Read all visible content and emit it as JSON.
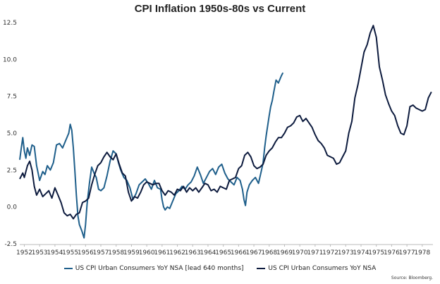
{
  "chart_data": {
    "type": "line",
    "title": "CPI Inflation 1950s-80s vs Current",
    "xlabel": "",
    "ylabel": "",
    "x_tick_labels": [
      "1952",
      "1953",
      "1954",
      "1955",
      "1956",
      "1957",
      "1958",
      "1959",
      "1960",
      "1961",
      "1962",
      "1963",
      "1964",
      "1965",
      "1966",
      "1967",
      "1968",
      "1969",
      "1970",
      "1971",
      "1972",
      "1973",
      "1974",
      "1975",
      "1976",
      "1977",
      "1978"
    ],
    "xlim": [
      1951.7,
      1978.7
    ],
    "ylim": [
      -2.5,
      12.5
    ],
    "y_tick_labels": [
      "12.5",
      "10.0",
      "7.5",
      "5.0",
      "2.5",
      "0.0",
      "-2.5"
    ],
    "y_ticks": [
      12.5,
      10.0,
      7.5,
      5.0,
      2.5,
      0.0,
      -2.5
    ],
    "grid": false,
    "legend_position": "bottom",
    "colors": {
      "lead": "#1f5f8b",
      "current": "#0d1b3e"
    },
    "series": [
      {
        "name": "US CPI Urban Consumers YoY NSA [lead 640 months]",
        "color": "#1f5f8b",
        "x": [
          1951.7,
          1951.8,
          1951.9,
          1952.0,
          1952.1,
          1952.2,
          1952.35,
          1952.5,
          1952.65,
          1952.8,
          1953.0,
          1953.2,
          1953.35,
          1953.5,
          1953.7,
          1953.9,
          1954.1,
          1954.3,
          1954.5,
          1954.7,
          1954.9,
          1955.0,
          1955.1,
          1955.2,
          1955.3,
          1955.4,
          1955.5,
          1955.6,
          1955.75,
          1955.9,
          1956.0,
          1956.1,
          1956.25,
          1956.4,
          1956.55,
          1956.7,
          1956.85,
          1957.0,
          1957.2,
          1957.4,
          1957.6,
          1957.8,
          1958.0,
          1958.15,
          1958.3,
          1958.5,
          1958.7,
          1958.9,
          1959.1,
          1959.3,
          1959.5,
          1959.7,
          1959.9,
          1960.1,
          1960.3,
          1960.5,
          1960.7,
          1960.9,
          1961.0,
          1961.1,
          1961.2,
          1961.35,
          1961.5,
          1961.7,
          1961.9,
          1962.1,
          1962.3,
          1962.5,
          1962.7,
          1962.9,
          1963.1,
          1963.3,
          1963.5,
          1963.7,
          1963.9,
          1964.1,
          1964.3,
          1964.5,
          1964.7,
          1964.9,
          1965.1,
          1965.3,
          1965.5,
          1965.7,
          1965.9,
          1966.1,
          1966.25,
          1966.35,
          1966.45,
          1966.55,
          1966.7,
          1966.9,
          1967.1,
          1967.3,
          1967.5,
          1967.6,
          1967.7,
          1967.8,
          1967.9,
          1968.0,
          1968.1,
          1968.2,
          1968.3,
          1968.45,
          1968.6,
          1968.8,
          1968.9
        ],
        "values": [
          3.2,
          4.0,
          4.7,
          3.8,
          3.3,
          4.0,
          3.5,
          4.2,
          4.1,
          2.8,
          1.8,
          2.4,
          2.2,
          2.8,
          2.5,
          3.0,
          4.2,
          4.3,
          4.0,
          4.5,
          5.0,
          5.6,
          5.2,
          4.0,
          2.5,
          0.8,
          -0.6,
          -1.2,
          -1.6,
          -2.1,
          -1.2,
          0.2,
          1.6,
          2.7,
          2.3,
          2.0,
          1.2,
          1.1,
          1.3,
          2.1,
          3.1,
          3.8,
          3.6,
          3.0,
          2.5,
          2.0,
          1.8,
          1.3,
          0.5,
          0.9,
          1.5,
          1.7,
          1.9,
          1.6,
          1.2,
          1.8,
          1.3,
          1.2,
          0.5,
          0.0,
          -0.2,
          0.0,
          -0.1,
          0.4,
          0.9,
          1.1,
          1.4,
          1.2,
          1.5,
          1.7,
          2.1,
          2.7,
          2.2,
          1.6,
          2.0,
          2.4,
          2.6,
          2.2,
          2.7,
          2.9,
          2.3,
          1.9,
          1.7,
          1.5,
          2.0,
          1.8,
          1.2,
          0.5,
          0.1,
          1.0,
          1.5,
          1.8,
          2.0,
          1.6,
          2.5,
          3.0,
          4.0,
          4.8,
          5.5,
          6.2,
          6.8,
          7.2,
          7.8,
          8.6,
          8.4,
          8.9,
          9.1
        ]
      },
      {
        "name": "US CPI Urban Consumers YoY NSA",
        "color": "#0d1b3e",
        "x": [
          1951.7,
          1951.9,
          1952.0,
          1952.2,
          1952.35,
          1952.5,
          1952.65,
          1952.8,
          1953.0,
          1953.2,
          1953.4,
          1953.6,
          1953.8,
          1954.0,
          1954.2,
          1954.4,
          1954.6,
          1954.8,
          1955.0,
          1955.2,
          1955.4,
          1955.6,
          1955.8,
          1956.0,
          1956.2,
          1956.4,
          1956.6,
          1956.8,
          1957.0,
          1957.2,
          1957.4,
          1957.6,
          1957.8,
          1958.0,
          1958.2,
          1958.4,
          1958.6,
          1958.8,
          1959.0,
          1959.2,
          1959.4,
          1959.6,
          1959.8,
          1960.0,
          1960.2,
          1960.4,
          1960.6,
          1960.8,
          1961.0,
          1961.2,
          1961.4,
          1961.6,
          1961.8,
          1962.0,
          1962.2,
          1962.4,
          1962.6,
          1962.8,
          1963.0,
          1963.2,
          1963.4,
          1963.6,
          1963.8,
          1964.0,
          1964.2,
          1964.4,
          1964.6,
          1964.8,
          1965.0,
          1965.2,
          1965.4,
          1965.6,
          1965.8,
          1966.0,
          1966.2,
          1966.4,
          1966.6,
          1966.8,
          1967.0,
          1967.2,
          1967.4,
          1967.6,
          1967.8,
          1968.0,
          1968.2,
          1968.4,
          1968.6,
          1968.8,
          1969.0,
          1969.2,
          1969.4,
          1969.6,
          1969.8,
          1970.0,
          1970.2,
          1970.4,
          1970.6,
          1970.8,
          1971.0,
          1971.2,
          1971.4,
          1971.6,
          1971.8,
          1972.0,
          1972.2,
          1972.4,
          1972.6,
          1972.8,
          1973.0,
          1973.2,
          1973.4,
          1973.6,
          1973.8,
          1974.0,
          1974.2,
          1974.4,
          1974.6,
          1974.8,
          1975.0,
          1975.2,
          1975.4,
          1975.6,
          1975.8,
          1976.0,
          1976.2,
          1976.4,
          1976.6,
          1976.8,
          1977.0,
          1977.2,
          1977.4,
          1977.6,
          1977.8,
          1978.0,
          1978.2,
          1978.4,
          1978.6
        ],
        "values": [
          1.9,
          2.3,
          2.0,
          2.8,
          3.1,
          2.5,
          1.4,
          0.8,
          1.2,
          0.7,
          0.9,
          1.1,
          0.6,
          1.3,
          0.8,
          0.3,
          -0.4,
          -0.6,
          -0.5,
          -0.8,
          -0.5,
          -0.4,
          0.3,
          0.4,
          0.6,
          1.5,
          2.2,
          2.8,
          3.0,
          3.4,
          3.7,
          3.4,
          3.2,
          3.6,
          2.9,
          2.3,
          2.1,
          1.0,
          0.4,
          0.7,
          0.6,
          1.0,
          1.5,
          1.7,
          1.6,
          1.5,
          1.6,
          1.6,
          1.1,
          0.8,
          1.1,
          1.0,
          0.8,
          1.2,
          1.1,
          1.4,
          1.0,
          1.3,
          1.1,
          1.3,
          1.0,
          1.3,
          1.6,
          1.5,
          1.1,
          1.2,
          1.0,
          1.4,
          1.3,
          1.2,
          1.8,
          1.9,
          2.0,
          2.6,
          2.8,
          3.5,
          3.7,
          3.4,
          2.8,
          2.6,
          2.7,
          2.9,
          3.5,
          3.8,
          4.0,
          4.4,
          4.7,
          4.7,
          5.0,
          5.4,
          5.5,
          5.7,
          6.1,
          6.2,
          5.8,
          6.0,
          5.7,
          5.4,
          4.9,
          4.5,
          4.3,
          4.0,
          3.5,
          3.4,
          3.3,
          2.9,
          3.0,
          3.4,
          3.8,
          5.0,
          5.8,
          7.4,
          8.3,
          9.4,
          10.5,
          11.0,
          11.8,
          12.3,
          11.5,
          9.5,
          8.6,
          7.6,
          7.0,
          6.5,
          6.2,
          5.5,
          5.0,
          4.9,
          5.5,
          6.8,
          6.9,
          6.7,
          6.6,
          6.5,
          6.6,
          7.4,
          7.8
        ]
      }
    ]
  },
  "source_note": "Source: Bloomberg."
}
